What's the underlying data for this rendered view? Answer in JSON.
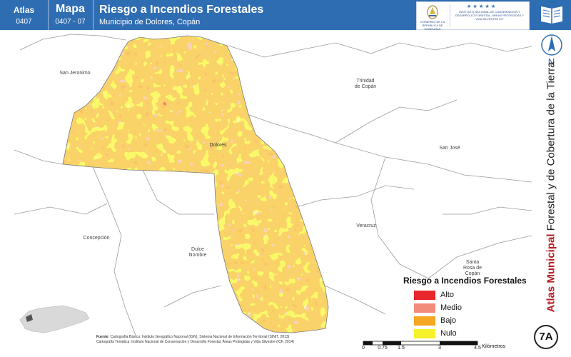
{
  "header": {
    "atlas_label": "Atlas",
    "atlas_code": "0407",
    "mapa_label": "Mapa",
    "mapa_code": "0407 - 07",
    "title": "Riesgo a Incendios Forestales",
    "subtitle": "Municipio de Dolores, Copán",
    "logo_left_caption": "GOBIERNO DE LA REPÚBLICA DE HONDURAS",
    "logo_right_caption": "INSTITUTO NACIONAL DE CONSERVACIÓN Y DESARROLLO FORESTAL, ÁREAS PROTEGIDAS Y VIDA SILVESTRE ICF"
  },
  "side": {
    "north_label": "N",
    "vertical_title_bold": "Atlas Municipal",
    "vertical_title_rest": " Forestal y de Cobertura de la Tierra",
    "badge": "7A"
  },
  "map": {
    "places": {
      "san_jeronimo": "San Jeronimo",
      "trinidad_l1": "Trinidad",
      "trinidad_l2": "de Copán",
      "dolores": "Dolores",
      "san_jose": "San José",
      "concepcion": "Concepción",
      "dulce_l1": "Dulce",
      "dulce_l2": "Nombre",
      "veracruz": "Veracruz",
      "santa_l1": "Santa",
      "santa_l2": "Rosa de",
      "santa_l3": "Copán"
    },
    "colors": {
      "alto": "#e8262b",
      "medio": "#f28b7a",
      "bajo": "#f5a623",
      "nulo": "#f6f22a"
    }
  },
  "legend": {
    "title": "Riesgo a Incendios Forestales",
    "items": [
      {
        "label": "Alto",
        "color": "#e8262b"
      },
      {
        "label": "Medio",
        "color": "#f28b7a"
      },
      {
        "label": "Bajo",
        "color": "#f5a623"
      },
      {
        "label": "Nulo",
        "color": "#f6f22a"
      }
    ]
  },
  "source": {
    "label": "Fuente:",
    "line1": "Cartografía Básica: Instituto Geográfico Nacional (IGN), Sistema Nacional de Información Territorial (SINIT, 2013)",
    "line2": "Cartografía Temática: Instituto Nacional de Conservación y Desarrollo Forestal, Áreas Protegidas y Vida Silvestre (ICF, 2014)"
  },
  "scale": {
    "ticks": [
      "0",
      "0.75",
      "1.5",
      "3",
      "4.5"
    ],
    "unit": "Kilómetros"
  }
}
